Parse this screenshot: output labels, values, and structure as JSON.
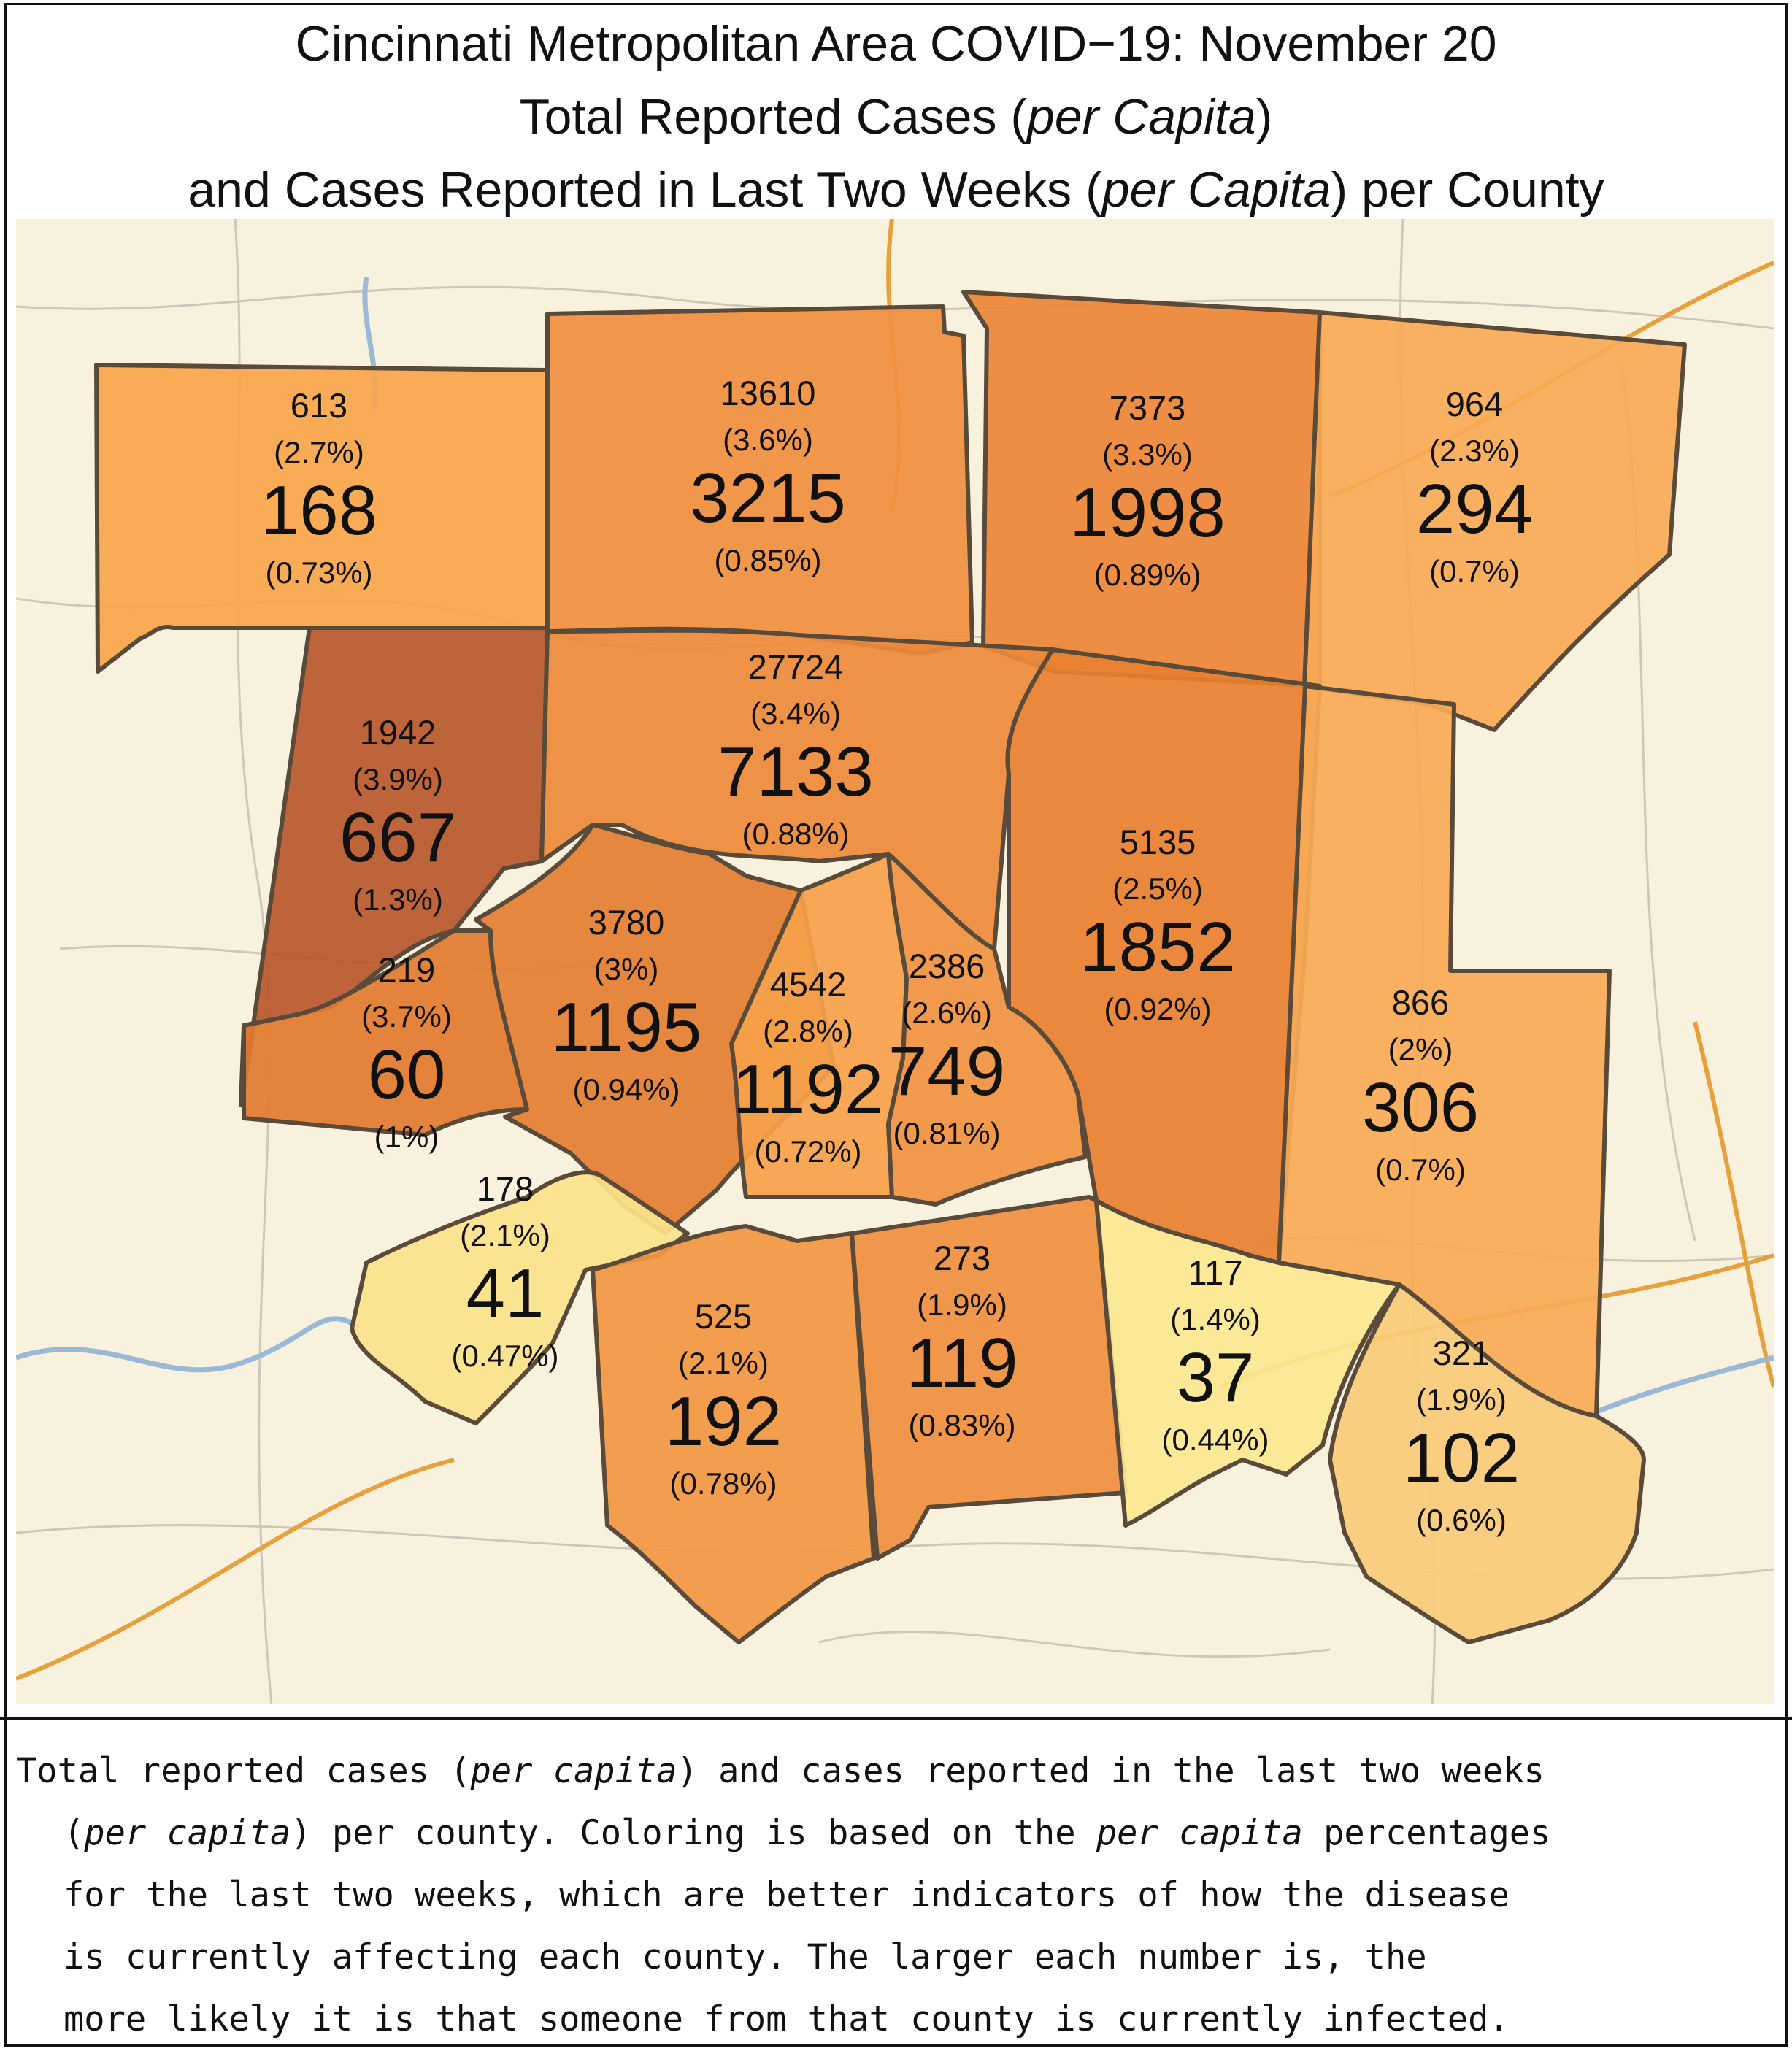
{
  "title": {
    "line1": "Cincinnati Metropolitan Area COVID−19: November 20",
    "line2_pre": "Total Reported Cases (",
    "line2_em": "per Capita",
    "line2_post": ")",
    "line3_pre": "and Cases Reported in Last Two Weeks (",
    "line3_em": "per Capita",
    "line3_post": ") per County"
  },
  "caption": {
    "l1_a": "Total reported cases (",
    "l1_em": "per capita",
    "l1_b": ") and cases reported in the last two weeks",
    "l2_a": "(",
    "l2_em1": "per capita",
    "l2_b": ") per county. Coloring is based on the ",
    "l2_em2": "per capita",
    "l2_c": " percentages",
    "l3": "for the last two weeks, which are better indicators of how the disease",
    "l4": "is currently affecting each county. The larger each number is, the",
    "l5": "more likely it is that someone from that county is currently infected."
  },
  "colors": {
    "map_bg": "#f8f1de",
    "roads_minor": "#c9c3b4",
    "highway": "#e8a33c",
    "river": "#8fb4d6",
    "county_border": "#5a4a3a"
  },
  "counties": [
    {
      "total": "613",
      "total_pct": "(2.7%)",
      "recent": "168",
      "recent_pct": "(0.73%)",
      "fill": "#f9a54a"
    },
    {
      "total": "13610",
      "total_pct": "(3.6%)",
      "recent": "3215",
      "recent_pct": "(0.85%)",
      "fill": "#f08f3f"
    },
    {
      "total": "7373",
      "total_pct": "(3.3%)",
      "recent": "1998",
      "recent_pct": "(0.89%)",
      "fill": "#ec8636"
    },
    {
      "total": "964",
      "total_pct": "(2.3%)",
      "recent": "294",
      "recent_pct": "(0.7%)",
      "fill": "#f8aa55"
    },
    {
      "total": "1942",
      "total_pct": "(3.9%)",
      "recent": "667",
      "recent_pct": "(1.3%)",
      "fill": "#b8582c"
    },
    {
      "total": "27724",
      "total_pct": "(3.4%)",
      "recent": "7133",
      "recent_pct": "(0.88%)",
      "fill": "#ec8a3a"
    },
    {
      "total": "5135",
      "total_pct": "(2.5%)",
      "recent": "1852",
      "recent_pct": "(0.92%)",
      "fill": "#e8802f"
    },
    {
      "total": "219",
      "total_pct": "(3.7%)",
      "recent": "60",
      "recent_pct": "(1%)",
      "fill": "#e27a2e"
    },
    {
      "total": "3780",
      "total_pct": "(3%)",
      "recent": "1195",
      "recent_pct": "(0.94%)",
      "fill": "#e47e32"
    },
    {
      "total": "4542",
      "total_pct": "(2.8%)",
      "recent": "1192",
      "recent_pct": "(0.72%)",
      "fill": "#f6a14a"
    },
    {
      "total": "2386",
      "total_pct": "(2.6%)",
      "recent": "749",
      "recent_pct": "(0.81%)",
      "fill": "#f09340"
    },
    {
      "total": "866",
      "total_pct": "(2%)",
      "recent": "306",
      "recent_pct": "(0.7%)",
      "fill": "#f8aa55"
    },
    {
      "total": "178",
      "total_pct": "(2.1%)",
      "recent": "41",
      "recent_pct": "(0.47%)",
      "fill": "#fbe38a"
    },
    {
      "total": "525",
      "total_pct": "(2.1%)",
      "recent": "192",
      "recent_pct": "(0.78%)",
      "fill": "#f29642"
    },
    {
      "total": "273",
      "total_pct": "(1.9%)",
      "recent": "119",
      "recent_pct": "(0.83%)",
      "fill": "#ef8f3e"
    },
    {
      "total": "117",
      "total_pct": "(1.4%)",
      "recent": "37",
      "recent_pct": "(0.44%)",
      "fill": "#fbe891"
    },
    {
      "total": "321",
      "total_pct": "(1.9%)",
      "recent": "102",
      "recent_pct": "(0.6%)",
      "fill": "#f8cb78"
    }
  ]
}
